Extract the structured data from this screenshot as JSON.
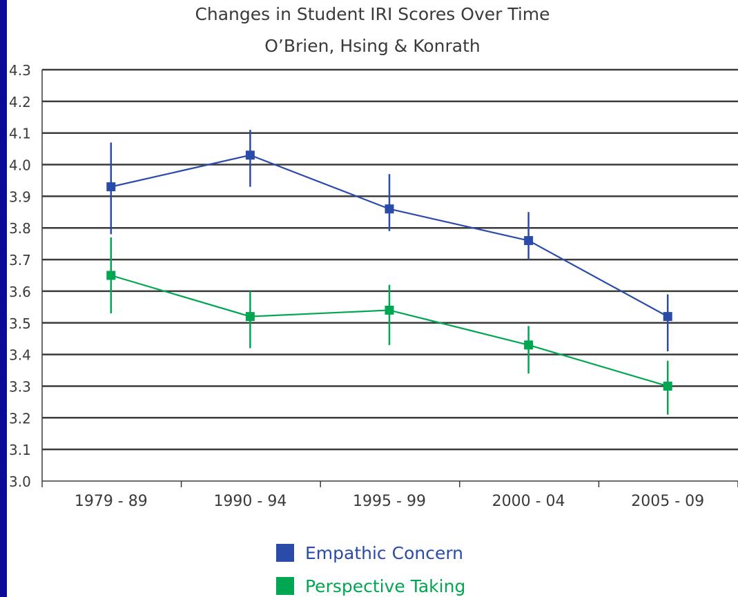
{
  "chart_data": {
    "type": "line",
    "title": "Changes in Student IRI Scores Over Time",
    "subtitle": "O’Brien, Hsing & Konrath",
    "xlabel": "",
    "ylabel": "",
    "categories": [
      "1979 - 89",
      "1990 - 94",
      "1995 - 99",
      "2000 - 04",
      "2005 - 09"
    ],
    "ylim": [
      3.0,
      4.3
    ],
    "yticks": [
      "3.0",
      "3.1",
      "3.2",
      "3.3",
      "3.4",
      "3.5",
      "3.6",
      "3.7",
      "3.8",
      "3.9",
      "4.0",
      "4.1",
      "4.2",
      "4.3"
    ],
    "grid": true,
    "legend_position": "bottom-center",
    "series": [
      {
        "name": "Empathic Concern",
        "color": "#2b4ba8",
        "values": [
          3.93,
          4.03,
          3.86,
          3.76,
          3.52
        ],
        "error_low": [
          3.78,
          3.93,
          3.79,
          3.7,
          3.41
        ],
        "error_high": [
          4.07,
          4.11,
          3.97,
          3.85,
          3.59
        ]
      },
      {
        "name": "Perspective Taking",
        "color": "#00a651",
        "values": [
          3.65,
          3.52,
          3.54,
          3.43,
          3.3
        ],
        "error_low": [
          3.53,
          3.42,
          3.43,
          3.34,
          3.21
        ],
        "error_high": [
          3.77,
          3.6,
          3.62,
          3.49,
          3.38
        ]
      }
    ]
  },
  "colors": {
    "frame": "#0b0b9a",
    "gridline": "#3a3a3a",
    "text": "#3a3a3a"
  }
}
